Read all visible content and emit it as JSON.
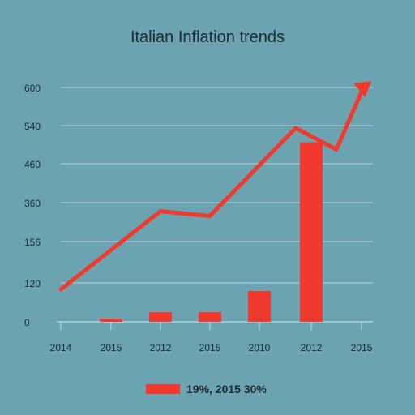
{
  "chart_data": {
    "type": "bar",
    "title": "Italian Inflation trends",
    "categories": [
      "2014",
      "2015",
      "2012",
      "2015",
      "2010",
      "2012",
      "2015"
    ],
    "x_tick_labels": [
      "2014",
      "2015",
      "2012",
      "2015",
      "2010",
      "2012",
      "2015"
    ],
    "y_tick_labels": [
      "0",
      "120",
      "156",
      "360",
      "460",
      "540",
      "600"
    ],
    "ylim": [
      0,
      600
    ],
    "grid": true,
    "series": [
      {
        "type": "bar",
        "values": [
          null,
          10,
          30,
          30,
          95,
          505,
          null
        ]
      },
      {
        "type": "line",
        "x": [
          0,
          2,
          3,
          4.7,
          5.5
        ],
        "values": [
          100,
          315,
          290,
          535,
          490
        ],
        "arrow_to": {
          "x": 6.2,
          "value": 600
        }
      }
    ],
    "legend": {
      "position": "bottom",
      "text": "19%, 2015 30%"
    }
  },
  "colors": {
    "background": "#6BA3B1",
    "accent": "#F03A2E",
    "grid": "#B4D2DA",
    "text": "#1E2B33"
  }
}
